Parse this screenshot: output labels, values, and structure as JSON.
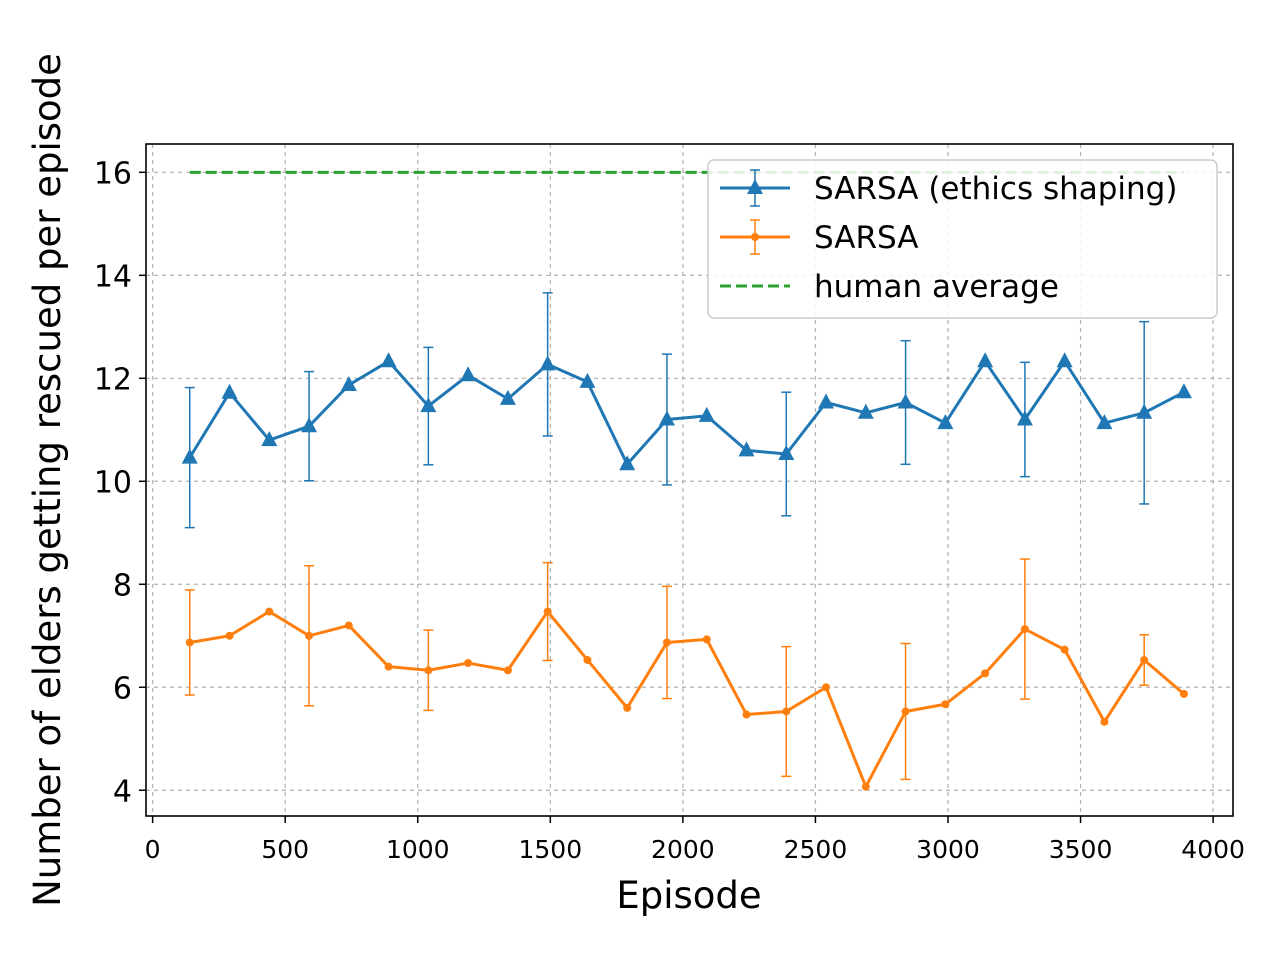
{
  "chart_data": {
    "type": "line",
    "xlabel": "Episode",
    "ylabel": "Number of elders getting rescued per episode",
    "xlim": [
      -25,
      4075
    ],
    "ylim": [
      3.5,
      16.55
    ],
    "xticks": [
      0,
      500,
      1000,
      1500,
      2000,
      2500,
      3000,
      3500,
      4000
    ],
    "yticks": [
      4,
      6,
      8,
      10,
      12,
      14,
      16
    ],
    "grid": true,
    "legend_position": "upper right",
    "x": [
      140,
      290,
      440,
      590,
      740,
      890,
      1040,
      1190,
      1340,
      1490,
      1640,
      1790,
      1940,
      2090,
      2240,
      2390,
      2540,
      2690,
      2840,
      2990,
      3140,
      3290,
      3440,
      3590,
      3740,
      3890
    ],
    "series": [
      {
        "name": "SARSA (ethics shaping)",
        "color": "#1f77b4",
        "marker": "triangle",
        "values": [
          10.46,
          11.72,
          10.8,
          11.07,
          11.87,
          12.33,
          11.46,
          12.06,
          11.6,
          12.27,
          11.93,
          10.33,
          11.2,
          11.27,
          10.6,
          10.53,
          11.53,
          11.33,
          11.53,
          11.13,
          12.33,
          11.2,
          12.33,
          11.13,
          11.33,
          11.73
        ],
        "errors": [
          1.36,
          null,
          null,
          1.06,
          null,
          null,
          1.14,
          null,
          null,
          1.39,
          null,
          null,
          1.27,
          null,
          null,
          1.2,
          null,
          null,
          1.2,
          null,
          null,
          1.11,
          null,
          null,
          1.77,
          null
        ]
      },
      {
        "name": "SARSA",
        "color": "#ff7f0e",
        "marker": "dot",
        "values": [
          6.87,
          7.0,
          7.47,
          7.0,
          7.2,
          6.4,
          6.33,
          6.47,
          6.33,
          7.47,
          6.53,
          5.6,
          6.87,
          6.93,
          5.47,
          5.53,
          6.0,
          4.07,
          5.53,
          5.67,
          6.27,
          7.13,
          6.73,
          5.33,
          6.53,
          5.87
        ],
        "errors": [
          1.02,
          null,
          null,
          1.36,
          null,
          null,
          0.78,
          null,
          null,
          0.95,
          null,
          null,
          1.09,
          null,
          null,
          1.26,
          null,
          null,
          1.32,
          null,
          null,
          1.36,
          null,
          null,
          0.49,
          null
        ]
      },
      {
        "name": "human average",
        "color": "#2ca02c",
        "style": "dashed",
        "values": [
          16.0,
          16.0,
          16.0,
          16.0,
          16.0,
          16.0,
          16.0,
          16.0,
          16.0,
          16.0,
          16.0,
          16.0,
          16.0,
          16.0,
          16.0,
          16.0,
          16.0,
          16.0,
          16.0,
          16.0,
          16.0,
          16.0,
          16.0,
          16.0,
          16.0,
          16.0
        ]
      }
    ]
  }
}
